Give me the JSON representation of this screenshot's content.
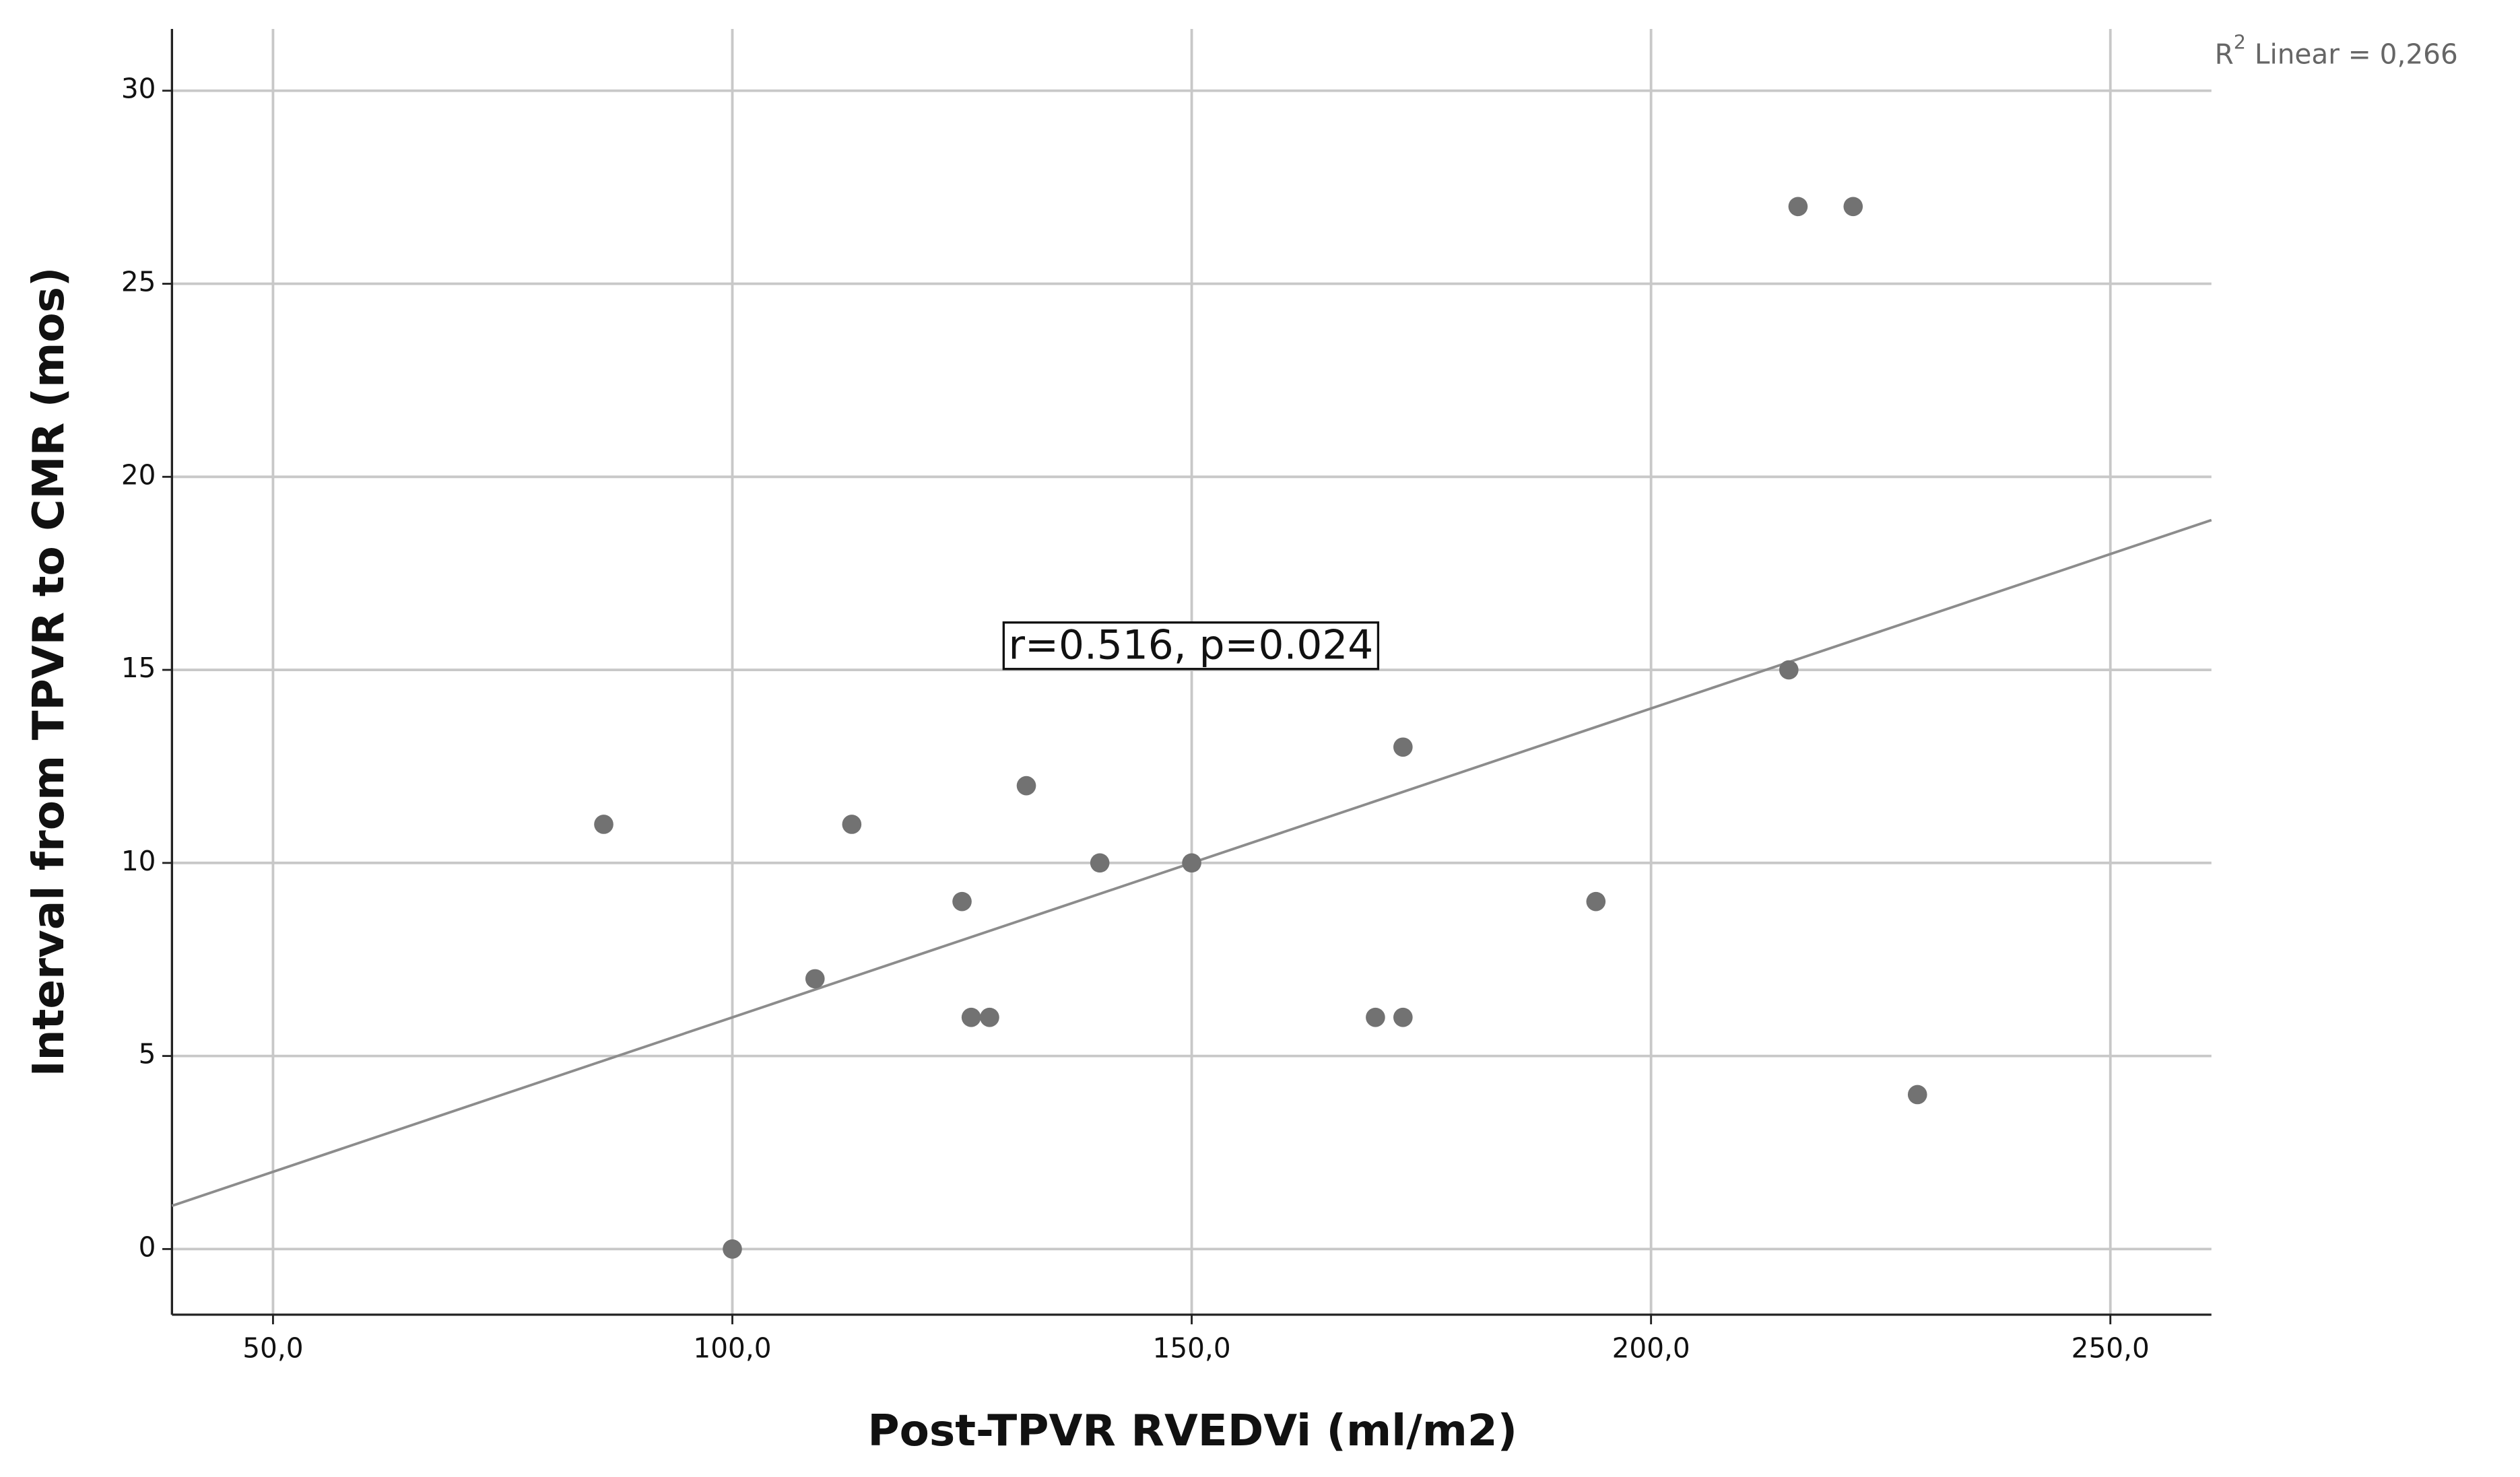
{
  "chart_data": {
    "type": "scatter",
    "x_label": "Post-TPVR RVEDVi (ml/m2)",
    "y_label": "Interval from  TPVR to CMR (mos)",
    "x": [
      86,
      100,
      109,
      113,
      125,
      126,
      128,
      132,
      140,
      150,
      170,
      173,
      173,
      194,
      215,
      216,
      222,
      229
    ],
    "values": [
      11,
      0,
      7,
      11,
      9,
      6,
      6,
      12,
      10,
      10,
      6,
      13,
      6,
      9,
      15,
      27,
      27,
      4
    ],
    "color": "#727272",
    "fit_line": {
      "slope": 0.08,
      "intercept": -2.0,
      "color": "#8c8c8c"
    },
    "r2_label": {
      "base": "R",
      "sup": "2",
      "rest": " Linear = 0,266"
    },
    "annotation": "r=0.516, p=0.024",
    "xlim": [
      39,
      261
    ],
    "ylim": [
      -1.7,
      31.6
    ],
    "xticks": [
      {
        "value": 50,
        "label": "50,0"
      },
      {
        "value": 100,
        "label": "100,0"
      },
      {
        "value": 150,
        "label": "150,0"
      },
      {
        "value": 200,
        "label": "200,0"
      },
      {
        "value": 250,
        "label": "250,0"
      }
    ],
    "yticks": [
      0,
      5,
      10,
      15,
      20,
      25,
      30
    ],
    "grid": true
  }
}
